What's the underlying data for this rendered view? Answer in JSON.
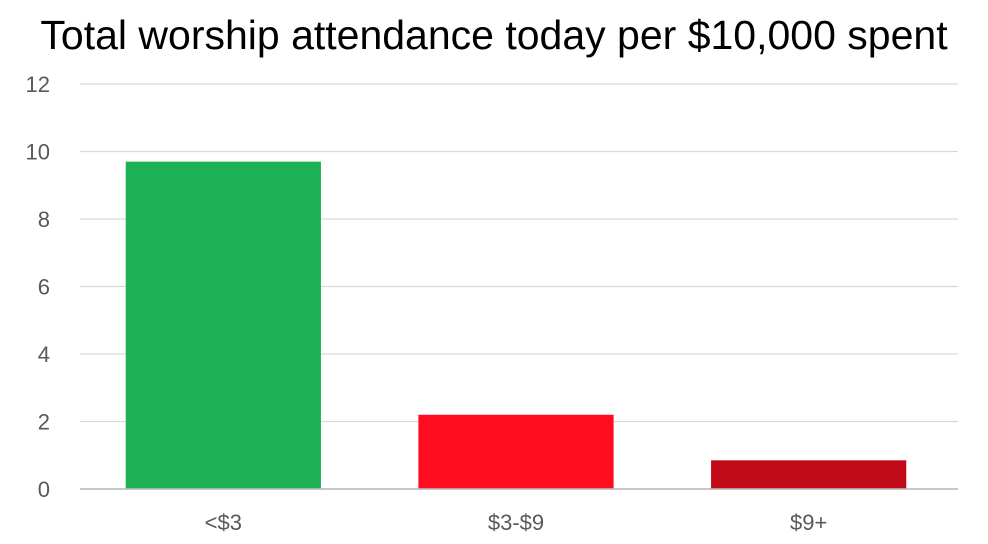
{
  "chart_data": {
    "type": "bar",
    "title": "Total worship attendance today per $10,000 spent",
    "xlabel": "",
    "ylabel": "",
    "categories": [
      "<$3",
      "$3-$9",
      "$9+"
    ],
    "values": [
      9.7,
      2.2,
      0.85
    ],
    "colors": [
      "#1DB054",
      "#FF0D1E",
      "#C00A17"
    ],
    "ylim": [
      0,
      12
    ],
    "yticks": [
      "0",
      "2",
      "4",
      "6",
      "8",
      "10",
      "12"
    ],
    "grid": true,
    "legend": "none"
  }
}
